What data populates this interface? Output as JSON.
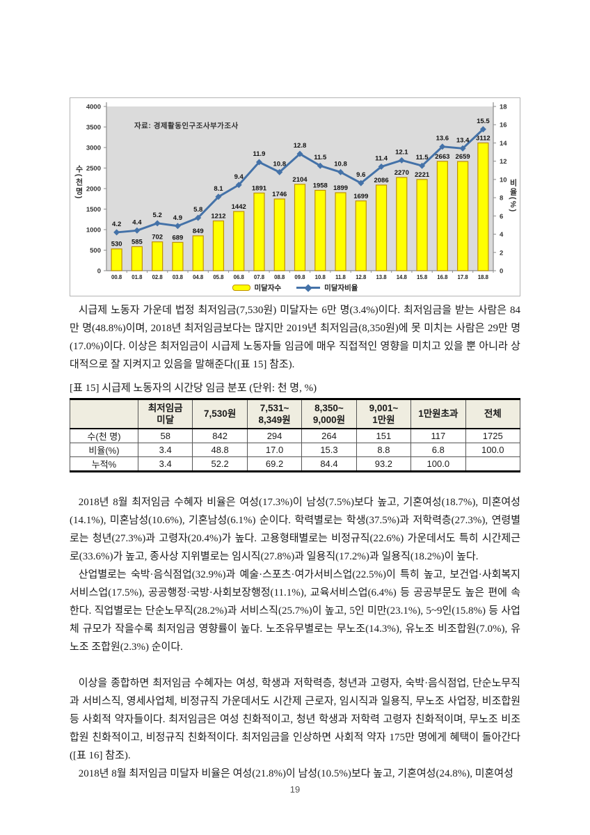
{
  "chart_data": {
    "type": "bar+line",
    "title": "",
    "annotation": "자료: 경제활동인구조사부가조사",
    "categories": [
      "00.8",
      "01.8",
      "02.8",
      "03.8",
      "04.8",
      "05.8",
      "06.8",
      "07.8",
      "08.8",
      "09.8",
      "10.8",
      "11.8",
      "12.8",
      "13.8",
      "14.8",
      "15.8",
      "16.8",
      "17.8",
      "18.8"
    ],
    "series": [
      {
        "name": "미달자수",
        "type": "bar",
        "axis": "left",
        "values": [
          530,
          585,
          702,
          689,
          849,
          1212,
          1442,
          1891,
          1746,
          2104,
          1958,
          1899,
          1699,
          2086,
          2270,
          2221,
          2663,
          2659,
          3112
        ],
        "color": "#ffff00",
        "border": "#bf9000"
      },
      {
        "name": "미달자비율",
        "type": "line",
        "axis": "right",
        "values": [
          4.2,
          4.4,
          5.2,
          4.9,
          5.8,
          8.1,
          9.4,
          11.9,
          10.8,
          12.8,
          11.5,
          10.8,
          9.6,
          11.4,
          12.1,
          11.5,
          13.6,
          13.4,
          15.5
        ],
        "color": "#4472a8"
      }
    ],
    "left_axis": {
      "title": "수(천명)",
      "min": 0,
      "max": 4000,
      "step": 500
    },
    "right_axis": {
      "title": "비율(%)",
      "min": 0,
      "max": 18,
      "step": 2
    },
    "plot_bg": "#dbdbdb",
    "legend_position": "bottom",
    "grid": false
  },
  "paragraphs": {
    "p1": "시급제 노동자 가운데 법정 최저임금(7,530원) 미달자는 6만 명(3.4%)이다. 최저임금을 받는 사람은 84만 명(48.8%)이며, 2018년 최저임금보다는 많지만 2019년 최저임금(8,350원)에 못 미치는 사람은 29만 명(17.0%)이다. 이상은 최저임금이 시급제 노동자들 임금에 매우 직접적인 영향을 미치고 있을 뿐 아니라 상대적으로 잘 지켜지고 있음을 말해준다([표 15] 참조).",
    "p2": "2018년 8월 최저임금 수혜자 비율은 여성(17.3%)이 남성(7.5%)보다 높고, 기혼여성(18.7%), 미혼여성(14.1%), 미혼남성(10.6%), 기혼남성(6.1%) 순이다. 학력별로는 학생(37.5%)과 저학력층(27.3%), 연령별로는 청년(27.3%)과 고령자(20.4%)가 높다. 고용형태별로는 비정규직(22.6%) 가운데서도 특히 시간제근로(33.6%)가 높고, 종사상 지위별로는 임시직(27.8%)과 일용직(17.2%)과 일용직(18.2%)이 높다.",
    "p3": "산업별로는 숙박·음식점업(32.9%)과 예술·스포츠·여가서비스업(22.5%)이 특히 높고, 보건업·사회복지서비스업(17.5%), 공공행정·국방·사회보장행정(11.1%), 교육서비스업(6.4%) 등 공공부문도 높은 편에 속한다. 직업별로는 단순노무직(28.2%)과 서비스직(25.7%)이 높고, 5인 미만(23.1%), 5~9인(15.8%) 등 사업체 규모가 작을수록 최저임금 영향률이 높다. 노조유무별로는 무노조(14.3%), 유노조 비조합원(7.0%), 유노조 조합원(2.3%) 순이다.",
    "p4": "이상을 종합하면 최저임금 수혜자는 여성, 학생과 저학력층, 청년과 고령자, 숙박·음식점업, 단순노무직과 서비스직, 영세사업체, 비정규직 가운데서도 시간제 근로자, 임시직과 일용직, 무노조 사업장, 비조합원 등 사회적 약자들이다. 최저임금은 여성 친화적이고, 청년 학생과 저학력 고령자 친화적이며, 무노조 비조합원 친화적이고, 비정규직 친화적이다. 최저임금을 인상하면 사회적 약자 175만 명에게 혜택이 돌아간다([표 16] 참조).",
    "p5": "2018년 8월 최저임금 미달자 비율은 여성(21.8%)이 남성(10.5%)보다 높고, 기혼여성(24.8%), 미혼여성"
  },
  "table": {
    "caption": "[표 15] 시급제 노동자의 시간당 임금 분포 (단위: 천 명, %)",
    "col_headers": [
      "최저임금\n미달",
      "7,530원",
      "7,531~\n8,349원",
      "8,350~\n9,000원",
      "9,001~\n1만원",
      "1만원초과",
      "전체"
    ],
    "rows": [
      {
        "label": "수(천 명)",
        "values": [
          "58",
          "842",
          "294",
          "264",
          "151",
          "117",
          "1725"
        ]
      },
      {
        "label": "비율(%)",
        "values": [
          "3.4",
          "48.8",
          "17.0",
          "15.3",
          "8.8",
          "6.8",
          "100.0"
        ]
      },
      {
        "label": "누적%",
        "values": [
          "3.4",
          "52.2",
          "69.2",
          "84.4",
          "93.2",
          "100.0",
          ""
        ]
      }
    ]
  },
  "page": {
    "number": "19"
  }
}
